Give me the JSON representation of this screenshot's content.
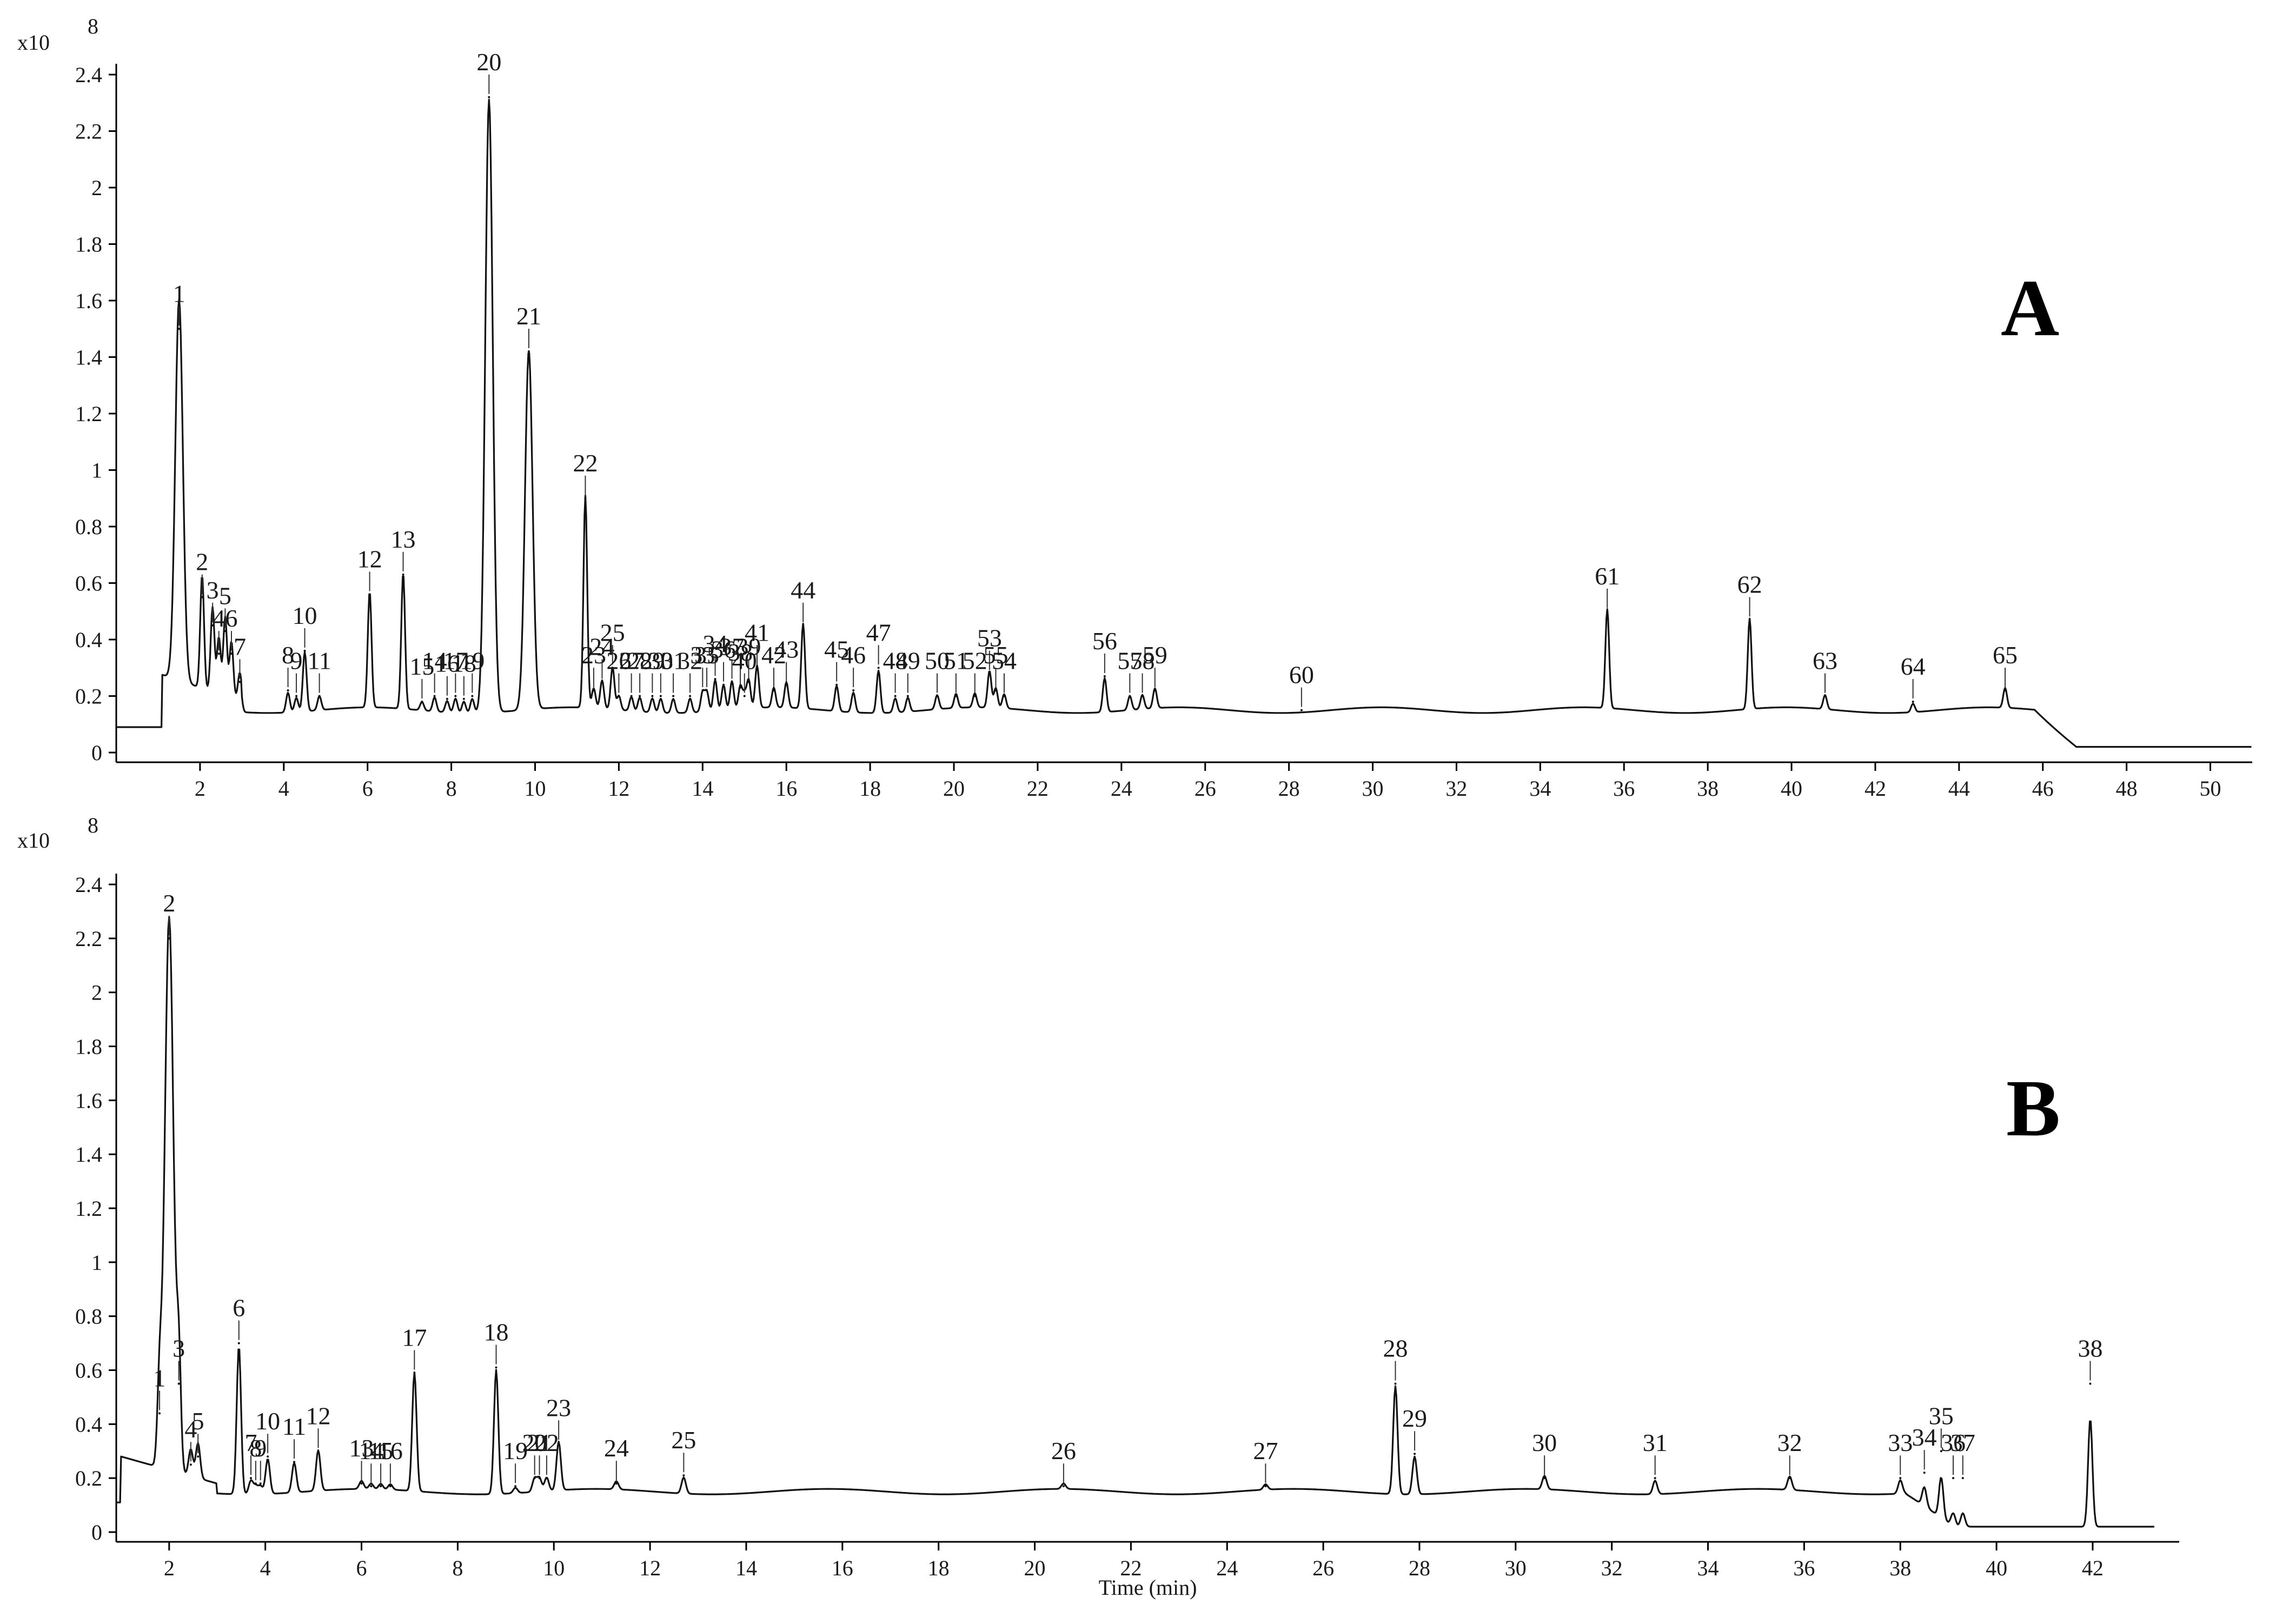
{
  "chart_data": [
    {
      "type": "line",
      "panel_label": "A",
      "y_multiplier": "x10",
      "y_exponent": "8",
      "xlim": [
        0,
        51
      ],
      "ylim": [
        0,
        2.4
      ],
      "x_ticks": [
        "2",
        "4",
        "6",
        "8",
        "10",
        "12",
        "14",
        "16",
        "18",
        "20",
        "22",
        "24",
        "26",
        "28",
        "30",
        "32",
        "34",
        "36",
        "38",
        "40",
        "42",
        "44",
        "46",
        "48",
        "50"
      ],
      "y_ticks": [
        "0",
        "0.2",
        "0.4",
        "0.6",
        "0.8",
        "1",
        "1.2",
        "1.4",
        "1.6",
        "1.8",
        "2",
        "2.2",
        "2.4"
      ],
      "peaks": [
        {
          "label": "1",
          "x": 1.5,
          "y": 1.5
        },
        {
          "label": "2",
          "x": 2.05,
          "y": 0.55
        },
        {
          "label": "3",
          "x": 2.3,
          "y": 0.45
        },
        {
          "label": "4",
          "x": 2.45,
          "y": 0.35
        },
        {
          "label": "5",
          "x": 2.6,
          "y": 0.43
        },
        {
          "label": "6",
          "x": 2.75,
          "y": 0.35
        },
        {
          "label": "7",
          "x": 2.95,
          "y": 0.25
        },
        {
          "label": "8",
          "x": 4.1,
          "y": 0.22
        },
        {
          "label": "9",
          "x": 4.3,
          "y": 0.2
        },
        {
          "label": "10",
          "x": 4.5,
          "y": 0.36
        },
        {
          "label": "11",
          "x": 4.85,
          "y": 0.2
        },
        {
          "label": "12",
          "x": 6.05,
          "y": 0.56
        },
        {
          "label": "13",
          "x": 6.85,
          "y": 0.63
        },
        {
          "label": "14",
          "x": 7.6,
          "y": 0.2
        },
        {
          "label": "15",
          "x": 7.3,
          "y": 0.18
        },
        {
          "label": "16",
          "x": 7.9,
          "y": 0.19
        },
        {
          "label": "17",
          "x": 8.1,
          "y": 0.2
        },
        {
          "label": "18",
          "x": 8.3,
          "y": 0.19
        },
        {
          "label": "19",
          "x": 8.5,
          "y": 0.2
        },
        {
          "label": "20",
          "x": 8.9,
          "y": 2.32
        },
        {
          "label": "21",
          "x": 9.85,
          "y": 1.42
        },
        {
          "label": "22",
          "x": 11.2,
          "y": 0.9
        },
        {
          "label": "23",
          "x": 11.4,
          "y": 0.22
        },
        {
          "label": "24",
          "x": 11.6,
          "y": 0.25
        },
        {
          "label": "25",
          "x": 11.85,
          "y": 0.3
        },
        {
          "label": "26",
          "x": 12.0,
          "y": 0.2
        },
        {
          "label": "27",
          "x": 12.3,
          "y": 0.2
        },
        {
          "label": "28",
          "x": 12.5,
          "y": 0.2
        },
        {
          "label": "29",
          "x": 12.8,
          "y": 0.2
        },
        {
          "label": "30",
          "x": 13.0,
          "y": 0.2
        },
        {
          "label": "31",
          "x": 13.3,
          "y": 0.2
        },
        {
          "label": "32",
          "x": 13.7,
          "y": 0.2
        },
        {
          "label": "33",
          "x": 14.0,
          "y": 0.22
        },
        {
          "label": "34",
          "x": 14.3,
          "y": 0.26
        },
        {
          "label": "35",
          "x": 14.1,
          "y": 0.22
        },
        {
          "label": "36",
          "x": 14.5,
          "y": 0.24
        },
        {
          "label": "37",
          "x": 14.7,
          "y": 0.25
        },
        {
          "label": "38",
          "x": 14.9,
          "y": 0.23
        },
        {
          "label": "39",
          "x": 15.1,
          "y": 0.25
        },
        {
          "label": "40",
          "x": 15.0,
          "y": 0.2
        },
        {
          "label": "41",
          "x": 15.3,
          "y": 0.3
        },
        {
          "label": "42",
          "x": 15.7,
          "y": 0.22
        },
        {
          "label": "43",
          "x": 16.0,
          "y": 0.24
        },
        {
          "label": "44",
          "x": 16.4,
          "y": 0.45
        },
        {
          "label": "45",
          "x": 17.2,
          "y": 0.24
        },
        {
          "label": "46",
          "x": 17.6,
          "y": 0.22
        },
        {
          "label": "47",
          "x": 18.2,
          "y": 0.3
        },
        {
          "label": "48",
          "x": 18.6,
          "y": 0.2
        },
        {
          "label": "49",
          "x": 18.9,
          "y": 0.2
        },
        {
          "label": "50",
          "x": 19.6,
          "y": 0.2
        },
        {
          "label": "51",
          "x": 20.05,
          "y": 0.2
        },
        {
          "label": "52",
          "x": 20.5,
          "y": 0.2
        },
        {
          "label": "53",
          "x": 20.85,
          "y": 0.28
        },
        {
          "label": "54",
          "x": 21.2,
          "y": 0.2
        },
        {
          "label": "55",
          "x": 21.0,
          "y": 0.22
        },
        {
          "label": "56",
          "x": 23.6,
          "y": 0.27
        },
        {
          "label": "57",
          "x": 24.2,
          "y": 0.2
        },
        {
          "label": "58",
          "x": 24.5,
          "y": 0.2
        },
        {
          "label": "59",
          "x": 24.8,
          "y": 0.22
        },
        {
          "label": "60",
          "x": 28.3,
          "y": 0.15
        },
        {
          "label": "61",
          "x": 35.6,
          "y": 0.5
        },
        {
          "label": "62",
          "x": 39.0,
          "y": 0.47
        },
        {
          "label": "63",
          "x": 40.8,
          "y": 0.2
        },
        {
          "label": "64",
          "x": 42.9,
          "y": 0.18
        },
        {
          "label": "65",
          "x": 45.1,
          "y": 0.22
        }
      ]
    },
    {
      "type": "line",
      "panel_label": "B",
      "y_multiplier": "x10",
      "y_exponent": "8",
      "xlim": [
        0.9,
        43.8
      ],
      "ylim": [
        0,
        2.4
      ],
      "xlabel": "Time (min)",
      "x_ticks": [
        "2",
        "4",
        "6",
        "8",
        "10",
        "12",
        "14",
        "16",
        "18",
        "20",
        "22",
        "24",
        "26",
        "28",
        "30",
        "32",
        "34",
        "36",
        "38",
        "40",
        "42"
      ],
      "y_ticks": [
        "0",
        "0.2",
        "0.4",
        "0.6",
        "0.8",
        "1",
        "1.2",
        "1.4",
        "1.6",
        "1.8",
        "2",
        "2.2",
        "2.4"
      ],
      "peaks": [
        {
          "label": "1",
          "x": 1.8,
          "y": 0.44
        },
        {
          "label": "2",
          "x": 2.0,
          "y": 2.2
        },
        {
          "label": "3",
          "x": 2.2,
          "y": 0.55
        },
        {
          "label": "4",
          "x": 2.45,
          "y": 0.25
        },
        {
          "label": "5",
          "x": 2.6,
          "y": 0.28
        },
        {
          "label": "6",
          "x": 3.45,
          "y": 0.7
        },
        {
          "label": "7",
          "x": 3.7,
          "y": 0.2
        },
        {
          "label": "8",
          "x": 3.8,
          "y": 0.18
        },
        {
          "label": "9",
          "x": 3.9,
          "y": 0.18
        },
        {
          "label": "10",
          "x": 4.05,
          "y": 0.28
        },
        {
          "label": "11",
          "x": 4.6,
          "y": 0.26
        },
        {
          "label": "12",
          "x": 5.1,
          "y": 0.3
        },
        {
          "label": "13",
          "x": 6.0,
          "y": 0.18
        },
        {
          "label": "14",
          "x": 6.2,
          "y": 0.17
        },
        {
          "label": "15",
          "x": 6.4,
          "y": 0.17
        },
        {
          "label": "16",
          "x": 6.6,
          "y": 0.17
        },
        {
          "label": "17",
          "x": 7.1,
          "y": 0.59
        },
        {
          "label": "18",
          "x": 8.8,
          "y": 0.61
        },
        {
          "label": "19",
          "x": 9.2,
          "y": 0.17
        },
        {
          "label": "20",
          "x": 9.6,
          "y": 0.2
        },
        {
          "label": "21",
          "x": 9.7,
          "y": 0.2
        },
        {
          "label": "22",
          "x": 9.85,
          "y": 0.2
        },
        {
          "label": "23",
          "x": 10.1,
          "y": 0.33
        },
        {
          "label": "24",
          "x": 11.3,
          "y": 0.18
        },
        {
          "label": "25",
          "x": 12.7,
          "y": 0.21
        },
        {
          "label": "26",
          "x": 20.6,
          "y": 0.17
        },
        {
          "label": "27",
          "x": 24.8,
          "y": 0.17
        },
        {
          "label": "28",
          "x": 27.5,
          "y": 0.55
        },
        {
          "label": "29",
          "x": 27.9,
          "y": 0.29
        },
        {
          "label": "30",
          "x": 30.6,
          "y": 0.2
        },
        {
          "label": "31",
          "x": 32.9,
          "y": 0.2
        },
        {
          "label": "32",
          "x": 35.7,
          "y": 0.2
        },
        {
          "label": "33",
          "x": 38.0,
          "y": 0.2
        },
        {
          "label": "34",
          "x": 38.5,
          "y": 0.22
        },
        {
          "label": "35",
          "x": 38.85,
          "y": 0.3
        },
        {
          "label": "36",
          "x": 39.1,
          "y": 0.2
        },
        {
          "label": "37",
          "x": 39.3,
          "y": 0.2
        },
        {
          "label": "38",
          "x": 41.95,
          "y": 0.55
        }
      ]
    }
  ]
}
